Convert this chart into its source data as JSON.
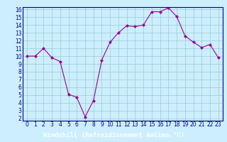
{
  "x": [
    0,
    1,
    2,
    3,
    4,
    5,
    6,
    7,
    8,
    9,
    10,
    11,
    12,
    13,
    14,
    15,
    16,
    17,
    18,
    19,
    20,
    21,
    22,
    23
  ],
  "y": [
    10,
    10,
    11,
    9.8,
    9.3,
    5.1,
    4.7,
    2.2,
    4.3,
    9.5,
    11.8,
    13.0,
    13.9,
    13.8,
    14.0,
    15.7,
    15.7,
    16.2,
    15.1,
    12.6,
    11.8,
    11.1,
    11.5,
    9.8
  ],
  "line_color": "#990099",
  "marker": "D",
  "marker_size": 2,
  "bg_color": "#cceeff",
  "grid_color": "#99cccc",
  "xlabel": "Windchill (Refroidissement éolien,°C)",
  "xlabel_color": "#000099",
  "xlabel_fontsize": 6.5,
  "tick_color": "#000099",
  "tick_fontsize": 5.5,
  "ylim_min": 2,
  "ylim_max": 16,
  "xlim_min": 0,
  "xlim_max": 23,
  "yticks": [
    2,
    3,
    4,
    5,
    6,
    7,
    8,
    9,
    10,
    11,
    12,
    13,
    14,
    15,
    16
  ],
  "xticks": [
    0,
    1,
    2,
    3,
    4,
    5,
    6,
    7,
    8,
    9,
    10,
    11,
    12,
    13,
    14,
    15,
    16,
    17,
    18,
    19,
    20,
    21,
    22,
    23
  ],
  "spine_color": "#000099",
  "bottom_bar_color": "#000099",
  "bottom_bar_height": 0.09
}
